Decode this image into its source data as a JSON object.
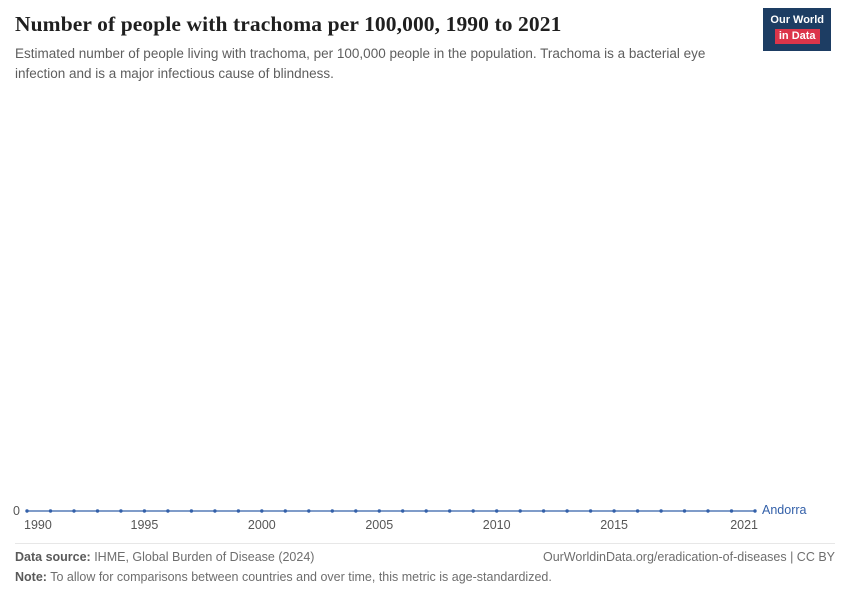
{
  "logo": {
    "line1": "Our World",
    "line2": "in Data"
  },
  "colors": {
    "logo_bg": "#1d3d63",
    "logo_accent": "#dc354a",
    "series": "#3360a9"
  },
  "header": {
    "title": "Number of people with trachoma per 100,000, 1990 to 2021",
    "subtitle": "Estimated number of people living with trachoma, per 100,000 people in the population. Trachoma is a bacterial eye infection and is a major infectious cause of blindness."
  },
  "chart_data": {
    "type": "line",
    "title": "Number of people with trachoma per 100,000, 1990 to 2021",
    "xlabel": "",
    "ylabel": "",
    "x": [
      1990,
      1991,
      1992,
      1993,
      1994,
      1995,
      1996,
      1997,
      1998,
      1999,
      2000,
      2001,
      2002,
      2003,
      2004,
      2005,
      2006,
      2007,
      2008,
      2009,
      2010,
      2011,
      2012,
      2013,
      2014,
      2015,
      2016,
      2017,
      2018,
      2019,
      2020,
      2021
    ],
    "series": [
      {
        "name": "Andorra",
        "color": "#3360a9",
        "values": [
          0,
          0,
          0,
          0,
          0,
          0,
          0,
          0,
          0,
          0,
          0,
          0,
          0,
          0,
          0,
          0,
          0,
          0,
          0,
          0,
          0,
          0,
          0,
          0,
          0,
          0,
          0,
          0,
          0,
          0,
          0,
          0
        ]
      }
    ],
    "x_ticks": [
      1990,
      1995,
      2000,
      2005,
      2010,
      2015,
      2021
    ],
    "y_ticks": [
      0
    ],
    "ylim": [
      0,
      1
    ],
    "grid": false,
    "legend_position": "end-of-line"
  },
  "footer": {
    "datasource_label": "Data source:",
    "datasource_value": " IHME, Global Burden of Disease (2024)",
    "rights": "OurWorldinData.org/eradication-of-diseases | CC BY",
    "note_label": "Note:",
    "note_value": " To allow for comparisons between countries and over time, this metric is age-standardized."
  }
}
